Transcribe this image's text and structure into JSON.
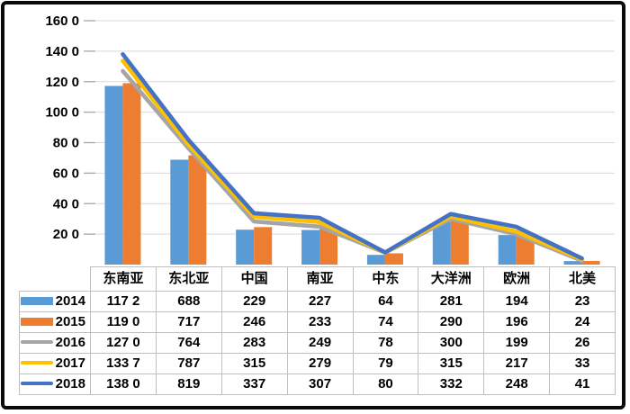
{
  "frame": {
    "border_color": "#0b0b0b",
    "background": "#ffffff"
  },
  "chart_data": {
    "type": "combo",
    "title": "",
    "xlabel": "",
    "ylabel": "",
    "categories": [
      "东南亚",
      "东北亚",
      "中国",
      "南亚",
      "中东",
      "大洋洲",
      "欧洲",
      "北美"
    ],
    "series": [
      {
        "name": "2014",
        "type": "bar",
        "color": "#5B9BD5",
        "values": [
          1172,
          688,
          229,
          227,
          64,
          281,
          194,
          23
        ]
      },
      {
        "name": "2015",
        "type": "bar",
        "color": "#ED7D31",
        "values": [
          1190,
          717,
          246,
          233,
          74,
          290,
          196,
          24
        ]
      },
      {
        "name": "2016",
        "type": "line",
        "color": "#A5A5A5",
        "values": [
          1270,
          764,
          283,
          249,
          78,
          300,
          199,
          26
        ]
      },
      {
        "name": "2017",
        "type": "line",
        "color": "#FFC000",
        "values": [
          1337,
          787,
          315,
          279,
          79,
          315,
          217,
          33
        ]
      },
      {
        "name": "2018",
        "type": "line",
        "color": "#4472C4",
        "values": [
          1380,
          819,
          337,
          307,
          80,
          332,
          248,
          41
        ]
      }
    ],
    "ylim": [
      0,
      1600
    ],
    "y_step": 200,
    "y_tick_labels_top_to_bottom": [
      "160 0",
      "140 0",
      "120 0",
      "100 0",
      "80 0",
      "60 0",
      "40 0",
      "20 0"
    ],
    "grid": true,
    "gridline_color": "#D9D9D9",
    "tick_color": "#A6A6A6",
    "axis_label_color": "#000000",
    "legend_position": "attached-data-table-left-column"
  },
  "data_table": {
    "border_color": "#BFBFBF",
    "column_headers": [
      "东南亚",
      "东北亚",
      "中国",
      "南亚",
      "中东",
      "大洋洲",
      "欧洲",
      "北美"
    ],
    "rows": [
      {
        "label": "2014",
        "marker": "bar",
        "color": "#5B9BD5",
        "values": [
          "117 2",
          "688",
          "229",
          "227",
          "64",
          "281",
          "194",
          "23"
        ]
      },
      {
        "label": "2015",
        "marker": "bar",
        "color": "#ED7D31",
        "values": [
          "119 0",
          "717",
          "246",
          "233",
          "74",
          "290",
          "196",
          "24"
        ]
      },
      {
        "label": "2016",
        "marker": "line",
        "color": "#A5A5A5",
        "values": [
          "127 0",
          "764",
          "283",
          "249",
          "78",
          "300",
          "199",
          "26"
        ]
      },
      {
        "label": "2017",
        "marker": "line",
        "color": "#FFC000",
        "values": [
          "133 7",
          "787",
          "315",
          "279",
          "79",
          "315",
          "217",
          "33"
        ]
      },
      {
        "label": "2018",
        "marker": "line",
        "color": "#4472C4",
        "values": [
          "138 0",
          "819",
          "337",
          "307",
          "80",
          "332",
          "248",
          "41"
        ]
      }
    ]
  }
}
